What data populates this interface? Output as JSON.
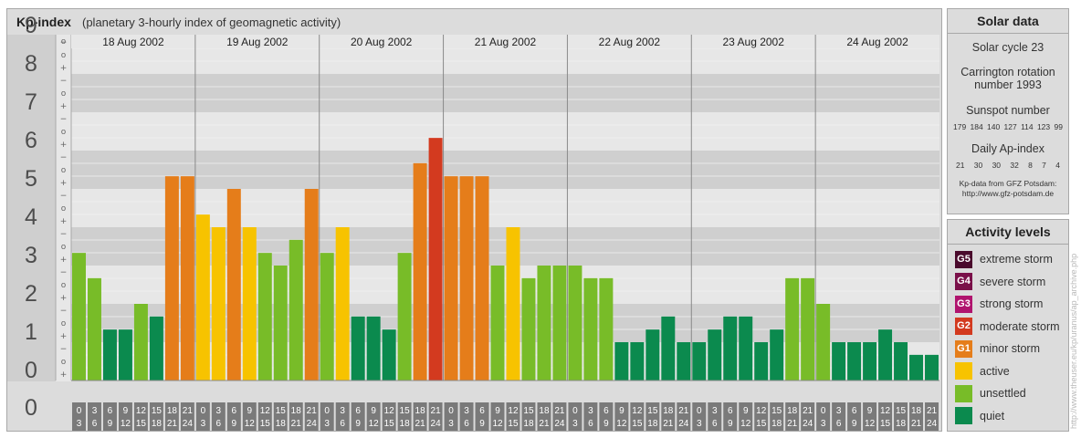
{
  "chart_data": {
    "type": "bar",
    "title": "Kp-index",
    "subtitle": "(planetary 3-hourly index of geomagnetic activity)",
    "days": [
      "18 Aug 2002",
      "19 Aug 2002",
      "20 Aug 2002",
      "21 Aug 2002",
      "22 Aug 2002",
      "23 Aug 2002",
      "24 Aug 2002"
    ],
    "ylim": [
      0,
      9
    ],
    "y_major_labels": [
      "0",
      "1",
      "2",
      "3",
      "4",
      "5",
      "6",
      "7",
      "8",
      "9"
    ],
    "y_minor_labels": [
      "+",
      "o",
      "−"
    ],
    "interval_starts": [
      "0",
      "3",
      "6",
      "9",
      "12",
      "15",
      "18",
      "21"
    ],
    "interval_ends": [
      "3",
      "6",
      "9",
      "12",
      "15",
      "18",
      "21",
      "24"
    ],
    "values": [
      3.33,
      2.67,
      1.33,
      1.33,
      2.0,
      1.67,
      5.33,
      5.33,
      4.33,
      4.0,
      5.0,
      4.0,
      3.33,
      3.0,
      3.67,
      5.0,
      3.33,
      4.0,
      1.67,
      1.67,
      1.33,
      3.33,
      5.67,
      6.33,
      5.33,
      5.33,
      5.33,
      3.0,
      4.0,
      2.67,
      3.0,
      3.0,
      3.0,
      2.67,
      2.67,
      1.0,
      1.0,
      1.33,
      1.67,
      1.0,
      1.0,
      1.33,
      1.67,
      1.67,
      1.0,
      1.33,
      2.67,
      2.67,
      2.0,
      1.0,
      1.0,
      1.0,
      1.33,
      1.0,
      0.67,
      0.67
    ],
    "colors": {
      "quiet": "#0b8a4e",
      "unsettled": "#78bc28",
      "active": "#f7c300",
      "minor": "#e57d1a",
      "moderate": "#d33a1f",
      "strong": "#b0146e",
      "severe": "#7a1049",
      "extreme": "#4a0a2c"
    }
  },
  "solar": {
    "header": "Solar data",
    "cycle": "Solar cycle 23",
    "carrington_1": "Carrington rotation",
    "carrington_2": "number 1993",
    "sunspot_label": "Sunspot number",
    "sunspot_values": [
      "179",
      "184",
      "140",
      "127",
      "114",
      "123",
      "99"
    ],
    "ap_label": "Daily Ap-index",
    "ap_values": [
      "21",
      "30",
      "30",
      "32",
      "8",
      "7",
      "4"
    ],
    "credit_1": "Kp-data from GFZ Potsdam:",
    "credit_2": "http://www.gfz-potsdam.de"
  },
  "activity": {
    "header": "Activity levels",
    "levels": [
      {
        "badge": "G5",
        "label": "extreme storm",
        "color": "#4a0a2c"
      },
      {
        "badge": "G4",
        "label": "severe storm",
        "color": "#7a1049"
      },
      {
        "badge": "G3",
        "label": "strong storm",
        "color": "#b0146e"
      },
      {
        "badge": "G2",
        "label": "moderate storm",
        "color": "#d33a1f"
      },
      {
        "badge": "G1",
        "label": "minor storm",
        "color": "#e57d1a"
      },
      {
        "badge": "",
        "label": "active",
        "color": "#f7c300"
      },
      {
        "badge": "",
        "label": "unsettled",
        "color": "#78bc28"
      },
      {
        "badge": "",
        "label": "quiet",
        "color": "#0b8a4e"
      }
    ]
  },
  "watermark": "http://www.theuser.eu/kp/uranus/ap_archive.php"
}
